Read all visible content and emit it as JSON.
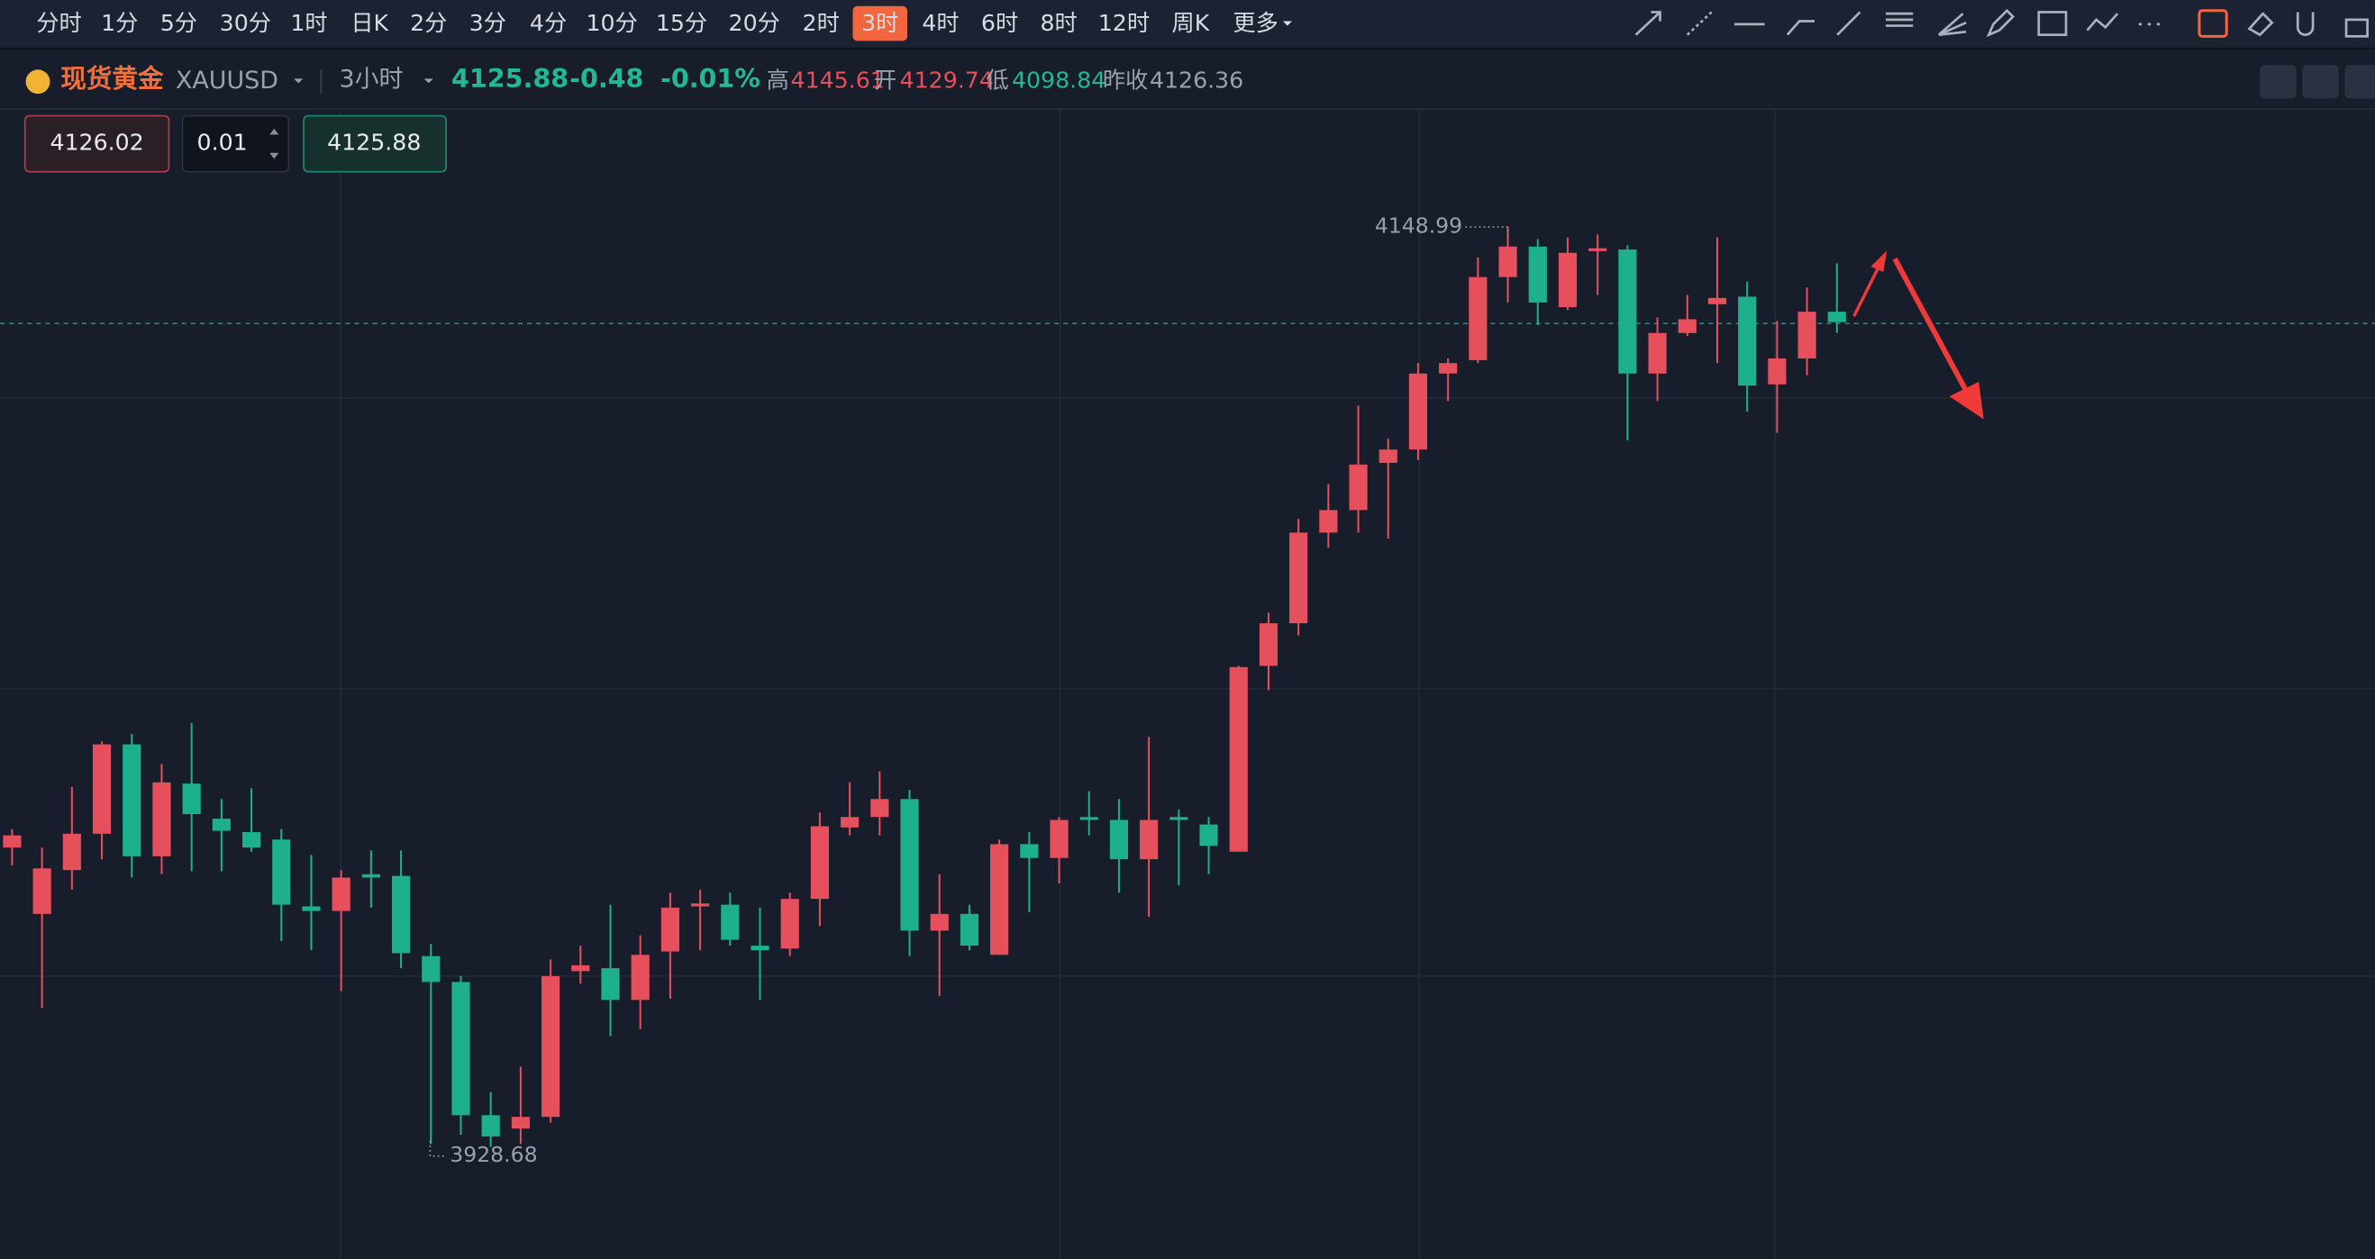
{
  "toolbar": {
    "timeframes": [
      "分时",
      "1分",
      "5分",
      "30分",
      "1时",
      "日K",
      "2分",
      "3分",
      "4分",
      "10分",
      "15分",
      "20分",
      "2时",
      "3时",
      "4时",
      "6时",
      "8时",
      "12时",
      "周K",
      "更多"
    ]
  },
  "header": {
    "name": "现货黄金",
    "symbol": "XAUUSD",
    "period": "3小时",
    "price": 4125.88,
    "change": "-0.48",
    "change_pct": "-0.01%",
    "high_label": "高",
    "high": "4145.61",
    "open_label": "开",
    "open": "4129.74",
    "low_label": "低",
    "low": "4098.84",
    "prev_close_label": "昨收",
    "prev_close": "4126.36"
  },
  "order": {
    "sell": "4126.02",
    "lots": "0.01",
    "buy": "4125.88"
  },
  "chart_data": {
    "type": "candlestick",
    "up_color": "#e5505c",
    "down_color": "#1eb08d",
    "open": [
      4000.4,
      3984.5,
      3995.0,
      4003.7,
      4025.1,
      3998.3,
      4015.7,
      4007.3,
      4004.1,
      4002.3,
      3986.3,
      3985.2,
      3994.0,
      3993.6,
      3974.4,
      3968.2,
      3936.3,
      3933.1,
      3935.9,
      3970.8,
      3971.5,
      3963.9,
      3975.5,
      3986.3,
      3986.7,
      3976.9,
      3976.2,
      3988.1,
      4005.2,
      4007.7,
      4012.0,
      3980.5,
      3984.5,
      3974.7,
      4001.2,
      3997.9,
      4007.7,
      4007.0,
      3997.6,
      4007.7,
      4005.9,
      3999.4,
      4043.9,
      4054.1,
      4075.8,
      4081.2,
      4092.5,
      4095.7,
      4113.9,
      4117.1,
      4137.0,
      4144.3,
      4129.8,
      4143.2,
      4143.6,
      4113.9,
      4123.6,
      4130.5,
      4132.3,
      4111.3,
      4117.5,
      4128.7
    ],
    "high": [
      4004.8,
      4000.4,
      4014.9,
      4025.8,
      4027.6,
      4020.4,
      4030.2,
      4012.0,
      4014.6,
      4004.8,
      3998.6,
      3995.0,
      3999.7,
      3999.7,
      3977.3,
      3969.6,
      3941.8,
      3947.9,
      3973.6,
      3976.9,
      3986.7,
      3979.4,
      3989.6,
      3990.3,
      3989.6,
      3986.0,
      3989.6,
      4008.8,
      4016.0,
      4018.6,
      4014.2,
      3994.0,
      3986.7,
      4002.3,
      4004.1,
      4007.7,
      4013.9,
      4012.0,
      4026.9,
      4009.5,
      4007.7,
      4043.9,
      4056.6,
      4079.1,
      4087.4,
      4106.2,
      4098.3,
      4116.4,
      4117.5,
      4141.7,
      4148.99,
      4146.1,
      4146.5,
      4147.2,
      4144.6,
      4127.3,
      4132.7,
      4146.5,
      4135.9,
      4126.5,
      4134.5,
      4140.3
    ],
    "low": [
      3996.1,
      3962.0,
      3990.3,
      3997.6,
      3993.2,
      3994.0,
      3994.7,
      3994.7,
      3999.4,
      3978.0,
      3975.8,
      3966.0,
      3986.0,
      3971.5,
      3929.4,
      3931.6,
      3928.68,
      3929.4,
      3934.5,
      3967.8,
      3955.2,
      3956.9,
      3964.2,
      3975.8,
      3976.9,
      3963.9,
      3974.4,
      3981.6,
      4003.3,
      4003.3,
      3974.4,
      3964.9,
      3975.8,
      3974.7,
      3984.9,
      3991.8,
      4003.3,
      3989.6,
      3983.8,
      3991.4,
      3994.0,
      3999.4,
      4038.1,
      4051.2,
      4072.2,
      4075.8,
      4074.4,
      4093.2,
      4107.3,
      4116.4,
      4130.9,
      4125.5,
      4129.1,
      4132.7,
      4097.9,
      4107.3,
      4122.9,
      4116.4,
      4104.8,
      4099.7,
      4113.5,
      4123.6
    ],
    "close": [
      4003.3,
      3995.4,
      4003.7,
      4025.1,
      3998.3,
      4016.0,
      4008.4,
      4004.4,
      4000.4,
      3986.7,
      3985.2,
      3993.2,
      3993.2,
      3975.1,
      3968.2,
      3936.3,
      3931.2,
      3935.9,
      3969.6,
      3972.2,
      3963.9,
      3974.7,
      3986.0,
      3987.0,
      3978.3,
      3975.8,
      3988.1,
      4005.5,
      4007.7,
      4012.0,
      3980.5,
      3984.5,
      3976.9,
      4001.2,
      3997.9,
      4007.0,
      4007.0,
      3997.6,
      4007.0,
      4007.0,
      4000.8,
      4043.6,
      4054.1,
      4075.8,
      4081.2,
      4092.1,
      4095.7,
      4113.9,
      4116.4,
      4137.0,
      4144.3,
      4130.9,
      4142.8,
      4143.9,
      4113.9,
      4123.6,
      4126.9,
      4132.0,
      4111.0,
      4117.5,
      4128.7,
      4126.2
    ]
  }
}
